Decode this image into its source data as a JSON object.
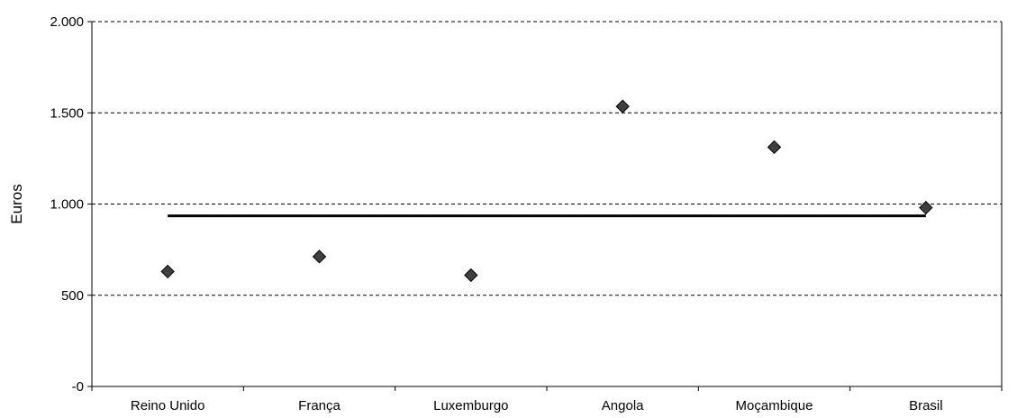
{
  "chart_data": {
    "type": "scatter",
    "categories": [
      "Reino Unido",
      "França",
      "Luxemburgo",
      "Angola",
      "Moçambique",
      "Brasil"
    ],
    "values": [
      630,
      712,
      610,
      1535,
      1312,
      980
    ],
    "reference_line": 935,
    "ylabel": "Euros",
    "ylim": [
      0,
      2000
    ],
    "yticks": [
      {
        "value": 0,
        "label": "-0"
      },
      {
        "value": 500,
        "label": "500"
      },
      {
        "value": 1000,
        "label": "1.000"
      },
      {
        "value": 1500,
        "label": "1.500"
      },
      {
        "value": 2000,
        "label": "2.000"
      }
    ],
    "grid": true,
    "legend": "none",
    "colors": {
      "marker": "#404040",
      "line": "#000000"
    }
  }
}
